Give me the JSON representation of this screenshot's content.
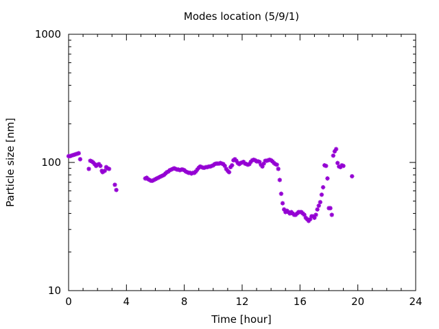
{
  "chart_data": {
    "type": "scatter",
    "title": "Modes location (5/9/1)",
    "xlabel": "Time [hour]",
    "ylabel": "Particle size [nm]",
    "xlim": [
      0,
      24
    ],
    "ylim": [
      10,
      1000
    ],
    "yscale": "log",
    "xticks": [
      0,
      4,
      8,
      12,
      16,
      20,
      24
    ],
    "yticks": [
      10,
      100,
      1000
    ],
    "xtick_labels": [
      "0",
      "4",
      "8",
      "12",
      "16",
      "20",
      "24"
    ],
    "ytick_labels": [
      "10",
      "100",
      "1000"
    ],
    "grid": false,
    "legend": "none",
    "marker_color": "#9400d3",
    "series": [
      {
        "points": [
          [
            0.0,
            112
          ],
          [
            0.1,
            112
          ],
          [
            0.2,
            113
          ],
          [
            0.3,
            114
          ],
          [
            0.4,
            115
          ],
          [
            0.5,
            116
          ],
          [
            0.6,
            117
          ],
          [
            0.7,
            118
          ],
          [
            0.8,
            106
          ],
          [
            1.4,
            89
          ],
          [
            1.5,
            103
          ],
          [
            1.6,
            102
          ],
          [
            1.7,
            100
          ],
          [
            1.8,
            97
          ],
          [
            1.9,
            94
          ],
          [
            2.0,
            96
          ],
          [
            2.1,
            97
          ],
          [
            2.2,
            94
          ],
          [
            2.3,
            86
          ],
          [
            2.35,
            84
          ],
          [
            2.5,
            86
          ],
          [
            2.6,
            92
          ],
          [
            2.7,
            90
          ],
          [
            2.8,
            89
          ],
          [
            3.2,
            67
          ],
          [
            3.3,
            61
          ],
          [
            5.3,
            75
          ],
          [
            5.4,
            76
          ],
          [
            5.5,
            74
          ],
          [
            5.6,
            73
          ],
          [
            5.7,
            72
          ],
          [
            5.8,
            72
          ],
          [
            5.9,
            73
          ],
          [
            6.0,
            74
          ],
          [
            6.1,
            75
          ],
          [
            6.2,
            76
          ],
          [
            6.3,
            77
          ],
          [
            6.4,
            78
          ],
          [
            6.5,
            79
          ],
          [
            6.6,
            80
          ],
          [
            6.7,
            82
          ],
          [
            6.8,
            84
          ],
          [
            6.9,
            85
          ],
          [
            7.0,
            87
          ],
          [
            7.1,
            88
          ],
          [
            7.2,
            89
          ],
          [
            7.3,
            90
          ],
          [
            7.4,
            89
          ],
          [
            7.5,
            88
          ],
          [
            7.6,
            88
          ],
          [
            7.7,
            87
          ],
          [
            7.8,
            88
          ],
          [
            7.9,
            88
          ],
          [
            8.0,
            87
          ],
          [
            8.1,
            85
          ],
          [
            8.2,
            84
          ],
          [
            8.3,
            83
          ],
          [
            8.4,
            83
          ],
          [
            8.5,
            82
          ],
          [
            8.6,
            83
          ],
          [
            8.7,
            83
          ],
          [
            8.8,
            85
          ],
          [
            8.9,
            88
          ],
          [
            9.0,
            91
          ],
          [
            9.1,
            93
          ],
          [
            9.2,
            92
          ],
          [
            9.3,
            91
          ],
          [
            9.4,
            91
          ],
          [
            9.5,
            92
          ],
          [
            9.6,
            92
          ],
          [
            9.7,
            93
          ],
          [
            9.8,
            93
          ],
          [
            9.9,
            94
          ],
          [
            10.0,
            95
          ],
          [
            10.1,
            97
          ],
          [
            10.2,
            98
          ],
          [
            10.3,
            98
          ],
          [
            10.4,
            98
          ],
          [
            10.5,
            99
          ],
          [
            10.6,
            98
          ],
          [
            10.7,
            97
          ],
          [
            10.8,
            94
          ],
          [
            10.9,
            89
          ],
          [
            11.0,
            86
          ],
          [
            11.1,
            84
          ],
          [
            11.2,
            92
          ],
          [
            11.3,
            95
          ],
          [
            11.4,
            104
          ],
          [
            11.5,
            106
          ],
          [
            11.6,
            103
          ],
          [
            11.7,
            99
          ],
          [
            11.8,
            97
          ],
          [
            11.9,
            99
          ],
          [
            12.0,
            100
          ],
          [
            12.1,
            101
          ],
          [
            12.2,
            98
          ],
          [
            12.3,
            97
          ],
          [
            12.4,
            96
          ],
          [
            12.5,
            97
          ],
          [
            12.6,
            101
          ],
          [
            12.7,
            104
          ],
          [
            12.8,
            105
          ],
          [
            12.9,
            104
          ],
          [
            13.0,
            102
          ],
          [
            13.1,
            102
          ],
          [
            13.2,
            101
          ],
          [
            13.3,
            96
          ],
          [
            13.4,
            93
          ],
          [
            13.5,
            98
          ],
          [
            13.6,
            103
          ],
          [
            13.7,
            103
          ],
          [
            13.8,
            104
          ],
          [
            13.9,
            105
          ],
          [
            14.0,
            104
          ],
          [
            14.1,
            102
          ],
          [
            14.2,
            99
          ],
          [
            14.3,
            97
          ],
          [
            14.4,
            96
          ],
          [
            14.5,
            89
          ],
          [
            14.6,
            73
          ],
          [
            14.7,
            57
          ],
          [
            14.8,
            48
          ],
          [
            14.9,
            43
          ],
          [
            15.0,
            41
          ],
          [
            15.1,
            42
          ],
          [
            15.2,
            41
          ],
          [
            15.3,
            40
          ],
          [
            15.4,
            41
          ],
          [
            15.5,
            40
          ],
          [
            15.6,
            39
          ],
          [
            15.7,
            39
          ],
          [
            15.8,
            40
          ],
          [
            15.9,
            41
          ],
          [
            16.0,
            41
          ],
          [
            16.1,
            41
          ],
          [
            16.2,
            40
          ],
          [
            16.3,
            39
          ],
          [
            16.4,
            37
          ],
          [
            16.5,
            36
          ],
          [
            16.6,
            35
          ],
          [
            16.7,
            36
          ],
          [
            16.8,
            38
          ],
          [
            16.9,
            38
          ],
          [
            17.0,
            37
          ],
          [
            17.1,
            39
          ],
          [
            17.2,
            43
          ],
          [
            17.3,
            46
          ],
          [
            17.4,
            49
          ],
          [
            17.5,
            56
          ],
          [
            17.6,
            64
          ],
          [
            17.7,
            95
          ],
          [
            17.8,
            94
          ],
          [
            17.9,
            75
          ],
          [
            18.0,
            44
          ],
          [
            18.1,
            44
          ],
          [
            18.2,
            39
          ],
          [
            18.3,
            113
          ],
          [
            18.4,
            122
          ],
          [
            18.5,
            127
          ],
          [
            18.6,
            99
          ],
          [
            18.7,
            93
          ],
          [
            18.8,
            92
          ],
          [
            18.9,
            95
          ],
          [
            19.0,
            94
          ],
          [
            19.6,
            78
          ]
        ]
      }
    ]
  }
}
